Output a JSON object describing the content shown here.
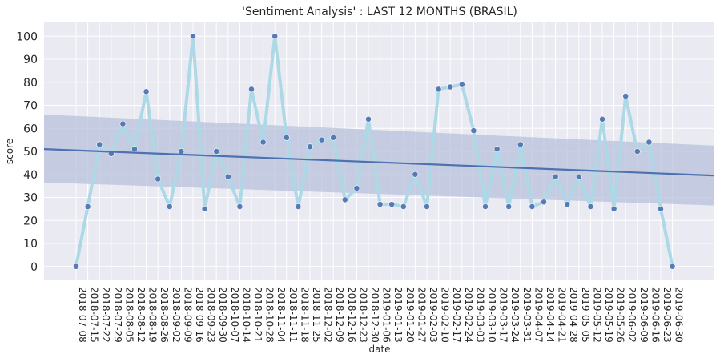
{
  "chart_data": {
    "type": "line",
    "title": "'Sentiment Analysis' : LAST 12 MONTHS (BRASIL)",
    "xlabel": "date",
    "ylabel": "score",
    "ylim": [
      -6,
      106
    ],
    "yticks": [
      0,
      10,
      20,
      30,
      40,
      50,
      60,
      70,
      80,
      90,
      100
    ],
    "grid": true,
    "x": [
      "2018-07-08",
      "2018-07-15",
      "2018-07-22",
      "2018-07-29",
      "2018-08-05",
      "2018-08-12",
      "2018-08-19",
      "2018-08-26",
      "2018-09-02",
      "2018-09-09",
      "2018-09-16",
      "2018-09-23",
      "2018-09-30",
      "2018-10-07",
      "2018-10-14",
      "2018-10-21",
      "2018-10-28",
      "2018-11-04",
      "2018-11-11",
      "2018-11-18",
      "2018-11-25",
      "2018-12-02",
      "2018-12-09",
      "2018-12-16",
      "2018-12-23",
      "2018-12-30",
      "2019-01-06",
      "2019-01-13",
      "2019-01-20",
      "2019-01-27",
      "2019-02-03",
      "2019-02-10",
      "2019-02-17",
      "2019-02-24",
      "2019-03-03",
      "2019-03-10",
      "2019-03-17",
      "2019-03-24",
      "2019-03-31",
      "2019-04-07",
      "2019-04-14",
      "2019-04-21",
      "2019-04-28",
      "2019-05-05",
      "2019-05-12",
      "2019-05-19",
      "2019-05-26",
      "2019-06-02",
      "2019-06-09",
      "2019-06-16",
      "2019-06-23",
      "2019-06-30"
    ],
    "series": [
      {
        "values": [
          0,
          26,
          53,
          49,
          62,
          51,
          76,
          38,
          26,
          50,
          100,
          25,
          50,
          39,
          26,
          77,
          54,
          100,
          56,
          26,
          52,
          55,
          56,
          29,
          34,
          64,
          27,
          27,
          26,
          40,
          26,
          77,
          78,
          79,
          59,
          26,
          51,
          26,
          53,
          26,
          28,
          39,
          27,
          39,
          26,
          64,
          25,
          74,
          50,
          54,
          25,
          0
        ]
      }
    ],
    "regression": {
      "start": 51,
      "end": 39.5,
      "ci_lower_start": 36.5,
      "ci_upper_start": 66,
      "ci_lower_end": 26.5,
      "ci_upper_end": 52.5
    },
    "colors": {
      "line": "#add8e6",
      "markers": "#4c72b0",
      "regression": "#4c72b0",
      "ci_band": "#b8c2dc",
      "background": "#eaeaf2",
      "grid": "#ffffff"
    }
  }
}
